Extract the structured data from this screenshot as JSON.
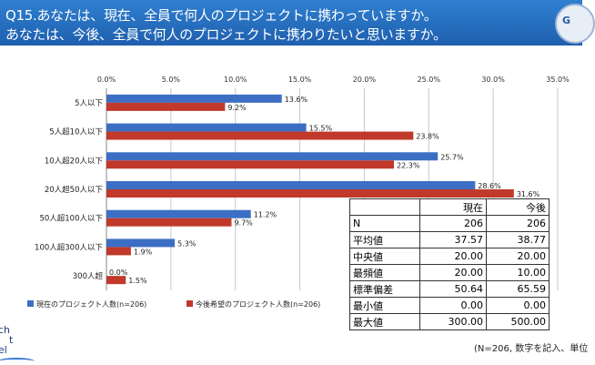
{
  "header": {
    "line1": "Q15.あなたは、現在、全員で何人のプロジェクトに携わっていますか。",
    "line2": "あなたは、今後、全員で何人のプロジェクトに携わりたいと思いますか。",
    "badge_text": "G",
    "colors": {
      "bg": "#2670c8",
      "text": "#ffffff"
    }
  },
  "chart_data": {
    "type": "bar",
    "orientation": "horizontal",
    "categories": [
      "5人以下",
      "5人超10人以下",
      "10人超20人以下",
      "20人超50人以下",
      "50人超100人以下",
      "100人超300人以下",
      "300人超"
    ],
    "series": [
      {
        "name": "現在のプロジェクト人数(n=206)",
        "color": "#3c6fc4",
        "values": [
          13.6,
          15.5,
          25.7,
          28.6,
          11.2,
          5.3,
          0.0
        ],
        "labels": [
          "13.6%",
          "15.5%",
          "25.7%",
          "28.6%",
          "11.2%",
          "5.3%",
          "0.0%"
        ]
      },
      {
        "name": "今後希望のプロジェクト人数(n=206)",
        "color": "#c0392b",
        "values": [
          9.2,
          23.8,
          22.3,
          31.6,
          9.7,
          1.9,
          1.5
        ],
        "labels": [
          "9.2%",
          "23.8%",
          "22.3%",
          "31.6%",
          "9.7%",
          "1.9%",
          "1.5%"
        ]
      }
    ],
    "xlim": [
      0,
      35
    ],
    "ticks": [
      "0.0%",
      "5.0%",
      "10.0%",
      "15.0%",
      "20.0%",
      "25.0%",
      "30.0%",
      "35.0%"
    ],
    "grid": true,
    "legend": "bottom-left"
  },
  "stats": {
    "columns": [
      "現在",
      "今後"
    ],
    "rows": [
      {
        "label": "N",
        "v1": "206",
        "v2": "206"
      },
      {
        "label": "平均値",
        "v1": "37.57",
        "v2": "38.77"
      },
      {
        "label": "中央値",
        "v1": "20.00",
        "v2": "20.00"
      },
      {
        "label": "最頻値",
        "v1": "20.00",
        "v2": "10.00"
      },
      {
        "label": "標準偏差",
        "v1": "50.64",
        "v2": "65.59"
      },
      {
        "label": "最小値",
        "v1": "0.00",
        "v2": "0.00"
      },
      {
        "label": "最大値",
        "v1": "300.00",
        "v2": "500.00"
      }
    ]
  },
  "note": "(N=206, 数字を記入、単位",
  "logo": {
    "line1": "ch",
    "line2": "t",
    "line3": "el"
  }
}
